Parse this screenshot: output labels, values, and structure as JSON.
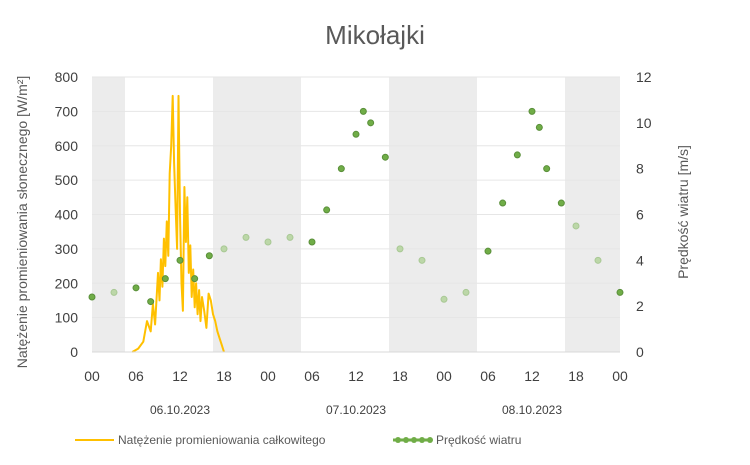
{
  "chart_data": {
    "type": "line",
    "title": "Mikołajki",
    "ylabel_left": "Natężenie promieniowania słonecznego [W/m²]",
    "ylabel_right": "Prędkość wiatru [m/s]",
    "ylim_left": [
      0,
      800
    ],
    "ylim_right": [
      0,
      12
    ],
    "yticks_left": [
      "0",
      "100",
      "200",
      "300",
      "400",
      "500",
      "600",
      "700",
      "800"
    ],
    "yticks_right": [
      "0",
      "2",
      "4",
      "6",
      "8",
      "10",
      "12"
    ],
    "x_range_hours": [
      0,
      72
    ],
    "x_ticks": [
      {
        "h": 0,
        "label": "00"
      },
      {
        "h": 6,
        "label": "06"
      },
      {
        "h": 12,
        "label": "12"
      },
      {
        "h": 18,
        "label": "18"
      },
      {
        "h": 24,
        "label": "00"
      },
      {
        "h": 30,
        "label": "06"
      },
      {
        "h": 36,
        "label": "12"
      },
      {
        "h": 42,
        "label": "18"
      },
      {
        "h": 48,
        "label": "00"
      },
      {
        "h": 54,
        "label": "06"
      },
      {
        "h": 60,
        "label": "12"
      },
      {
        "h": 66,
        "label": "18"
      },
      {
        "h": 72,
        "label": "00"
      }
    ],
    "dates": [
      {
        "h": 12,
        "label": "06.10.2023"
      },
      {
        "h": 36,
        "label": "07.10.2023"
      },
      {
        "h": 60,
        "label": "08.10.2023"
      }
    ],
    "night_periods_hours": [
      [
        0,
        4.5
      ],
      [
        16.5,
        28.5
      ],
      [
        40.5,
        52.5
      ],
      [
        64.5,
        72
      ]
    ],
    "series": [
      {
        "name": "Natężenie promieniowania całkowitego",
        "axis": "left",
        "color": "#FFC000",
        "x": [
          5.5,
          6.3,
          7.0,
          7.5,
          8.0,
          8.3,
          8.6,
          9.0,
          9.2,
          9.4,
          9.6,
          9.8,
          10.0,
          10.2,
          10.4,
          10.6,
          10.8,
          11.0,
          11.2,
          11.4,
          11.6,
          11.8,
          12.0,
          12.2,
          12.4,
          12.6,
          12.8,
          13.0,
          13.2,
          13.4,
          13.6,
          13.8,
          14.0,
          14.2,
          14.4,
          14.6,
          14.8,
          15.0,
          15.3,
          15.6,
          15.9,
          16.2,
          16.5,
          16.8,
          17.1,
          17.4,
          17.7,
          18.0
        ],
        "values": [
          0,
          10,
          30,
          90,
          60,
          140,
          80,
          230,
          150,
          270,
          190,
          330,
          250,
          380,
          280,
          520,
          600,
          745,
          550,
          420,
          300,
          745,
          400,
          200,
          120,
          480,
          320,
          450,
          230,
          310,
          160,
          240,
          130,
          200,
          110,
          180,
          90,
          160,
          120,
          70,
          170,
          150,
          110,
          90,
          60,
          40,
          20,
          0
        ]
      },
      {
        "name": "Prędkość wiatru",
        "axis": "right",
        "color": "#70AD47",
        "x": [
          0,
          3,
          6,
          8,
          10,
          12,
          14,
          16,
          18,
          21,
          24,
          27,
          30,
          32,
          34,
          36,
          37,
          38,
          40,
          42,
          45,
          48,
          51,
          54,
          56,
          58,
          60,
          61,
          62,
          64,
          66,
          69,
          72
        ],
        "values": [
          2.4,
          2.6,
          2.8,
          2.2,
          3.2,
          4.0,
          3.2,
          4.2,
          4.5,
          5.0,
          4.8,
          5.0,
          4.8,
          6.2,
          8.0,
          9.5,
          10.5,
          10.0,
          8.5,
          4.5,
          4.0,
          2.3,
          2.6,
          4.4,
          6.5,
          8.6,
          10.5,
          9.8,
          8.0,
          6.5,
          5.5,
          4.0,
          2.6
        ]
      }
    ],
    "legend_position": "bottom"
  }
}
